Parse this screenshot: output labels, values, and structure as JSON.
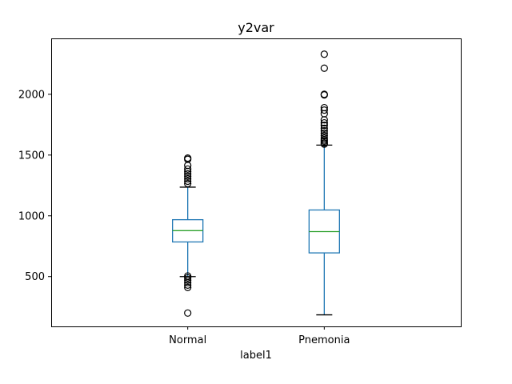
{
  "chart_data": {
    "type": "box",
    "title": "y2var",
    "xlabel": "label1",
    "ylabel": "",
    "categories": [
      "Normal",
      "Pnemonia"
    ],
    "ylim": [
      90,
      2460
    ],
    "yticks": [
      500,
      1000,
      1500,
      2000
    ],
    "grid": false,
    "legend": "none",
    "boxes": [
      {
        "category": "Normal",
        "whislo": 500,
        "q1": 785,
        "med": 878,
        "q3": 968,
        "whishi": 1236,
        "fliers": [
          200,
          410,
          430,
          450,
          470,
          490,
          505,
          1265,
          1285,
          1305,
          1325,
          1345,
          1365,
          1385,
          1415,
          1465,
          1475
        ]
      },
      {
        "category": "Pnemonia",
        "whislo": 185,
        "q1": 695,
        "med": 870,
        "q3": 1048,
        "whishi": 1582,
        "fliers": [
          1590,
          1600,
          1615,
          1625,
          1640,
          1660,
          1680,
          1700,
          1720,
          1745,
          1765,
          1790,
          1840,
          1870,
          1890,
          1995,
          2000,
          2215,
          2330
        ]
      }
    ],
    "colors": {
      "box": "#1f77b4",
      "median": "#2ca02c",
      "whisker": "#1f77b4",
      "cap": "#000000",
      "flier": "#000000",
      "axis": "#000000"
    }
  }
}
